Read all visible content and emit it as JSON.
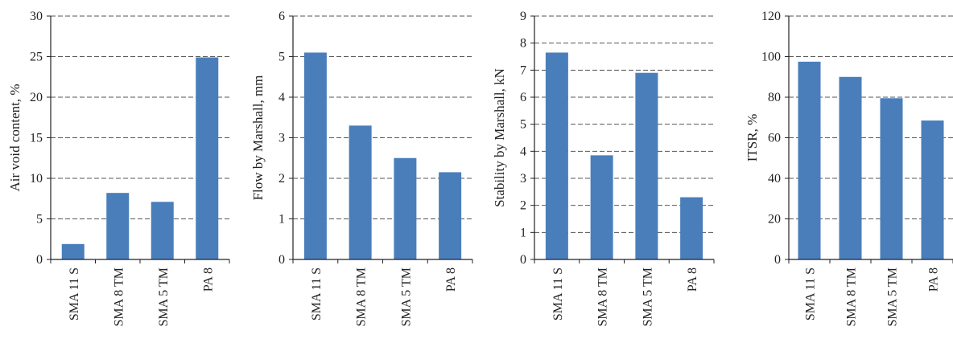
{
  "chart_data": [
    {
      "type": "bar",
      "categories": [
        "SMA 11 S",
        "SMA 8 TM",
        "SMA 5 TM",
        "PA 8"
      ],
      "values": [
        1.9,
        8.2,
        7.1,
        24.9
      ],
      "ylabel": "Air void content, %",
      "ylim": [
        0,
        30
      ],
      "yticks": [
        0,
        5,
        10,
        15,
        20,
        25,
        30
      ],
      "bar_color": "#4a7ebb",
      "grid": true
    },
    {
      "type": "bar",
      "categories": [
        "SMA 11 S",
        "SMA 8 TM",
        "SMA 5 TM",
        "PA 8"
      ],
      "values": [
        5.1,
        3.3,
        2.5,
        2.15
      ],
      "ylabel": "Flow by Marshall, mm",
      "ylim": [
        0,
        6
      ],
      "yticks": [
        0,
        1,
        2,
        3,
        4,
        5,
        6
      ],
      "bar_color": "#4a7ebb",
      "grid": true
    },
    {
      "type": "bar",
      "categories": [
        "SMA 11 S",
        "SMA 8 TM",
        "SMA 5 TM",
        "PA 8"
      ],
      "values": [
        7.65,
        3.85,
        6.9,
        2.3
      ],
      "ylabel": "Stability by Marshall, kN",
      "ylim": [
        0,
        9
      ],
      "yticks": [
        0,
        1,
        2,
        3,
        4,
        5,
        6,
        7,
        8,
        9
      ],
      "bar_color": "#4a7ebb",
      "grid": true
    },
    {
      "type": "bar",
      "categories": [
        "SMA 11 S",
        "SMA 8 TM",
        "SMA 5 TM",
        "PA 8"
      ],
      "values": [
        97.5,
        90,
        79.5,
        68.5
      ],
      "ylabel": "ITSR, %",
      "ylim": [
        0,
        120
      ],
      "yticks": [
        0,
        20,
        40,
        60,
        80,
        100,
        120
      ],
      "bar_color": "#4a7ebb",
      "grid": true
    }
  ]
}
